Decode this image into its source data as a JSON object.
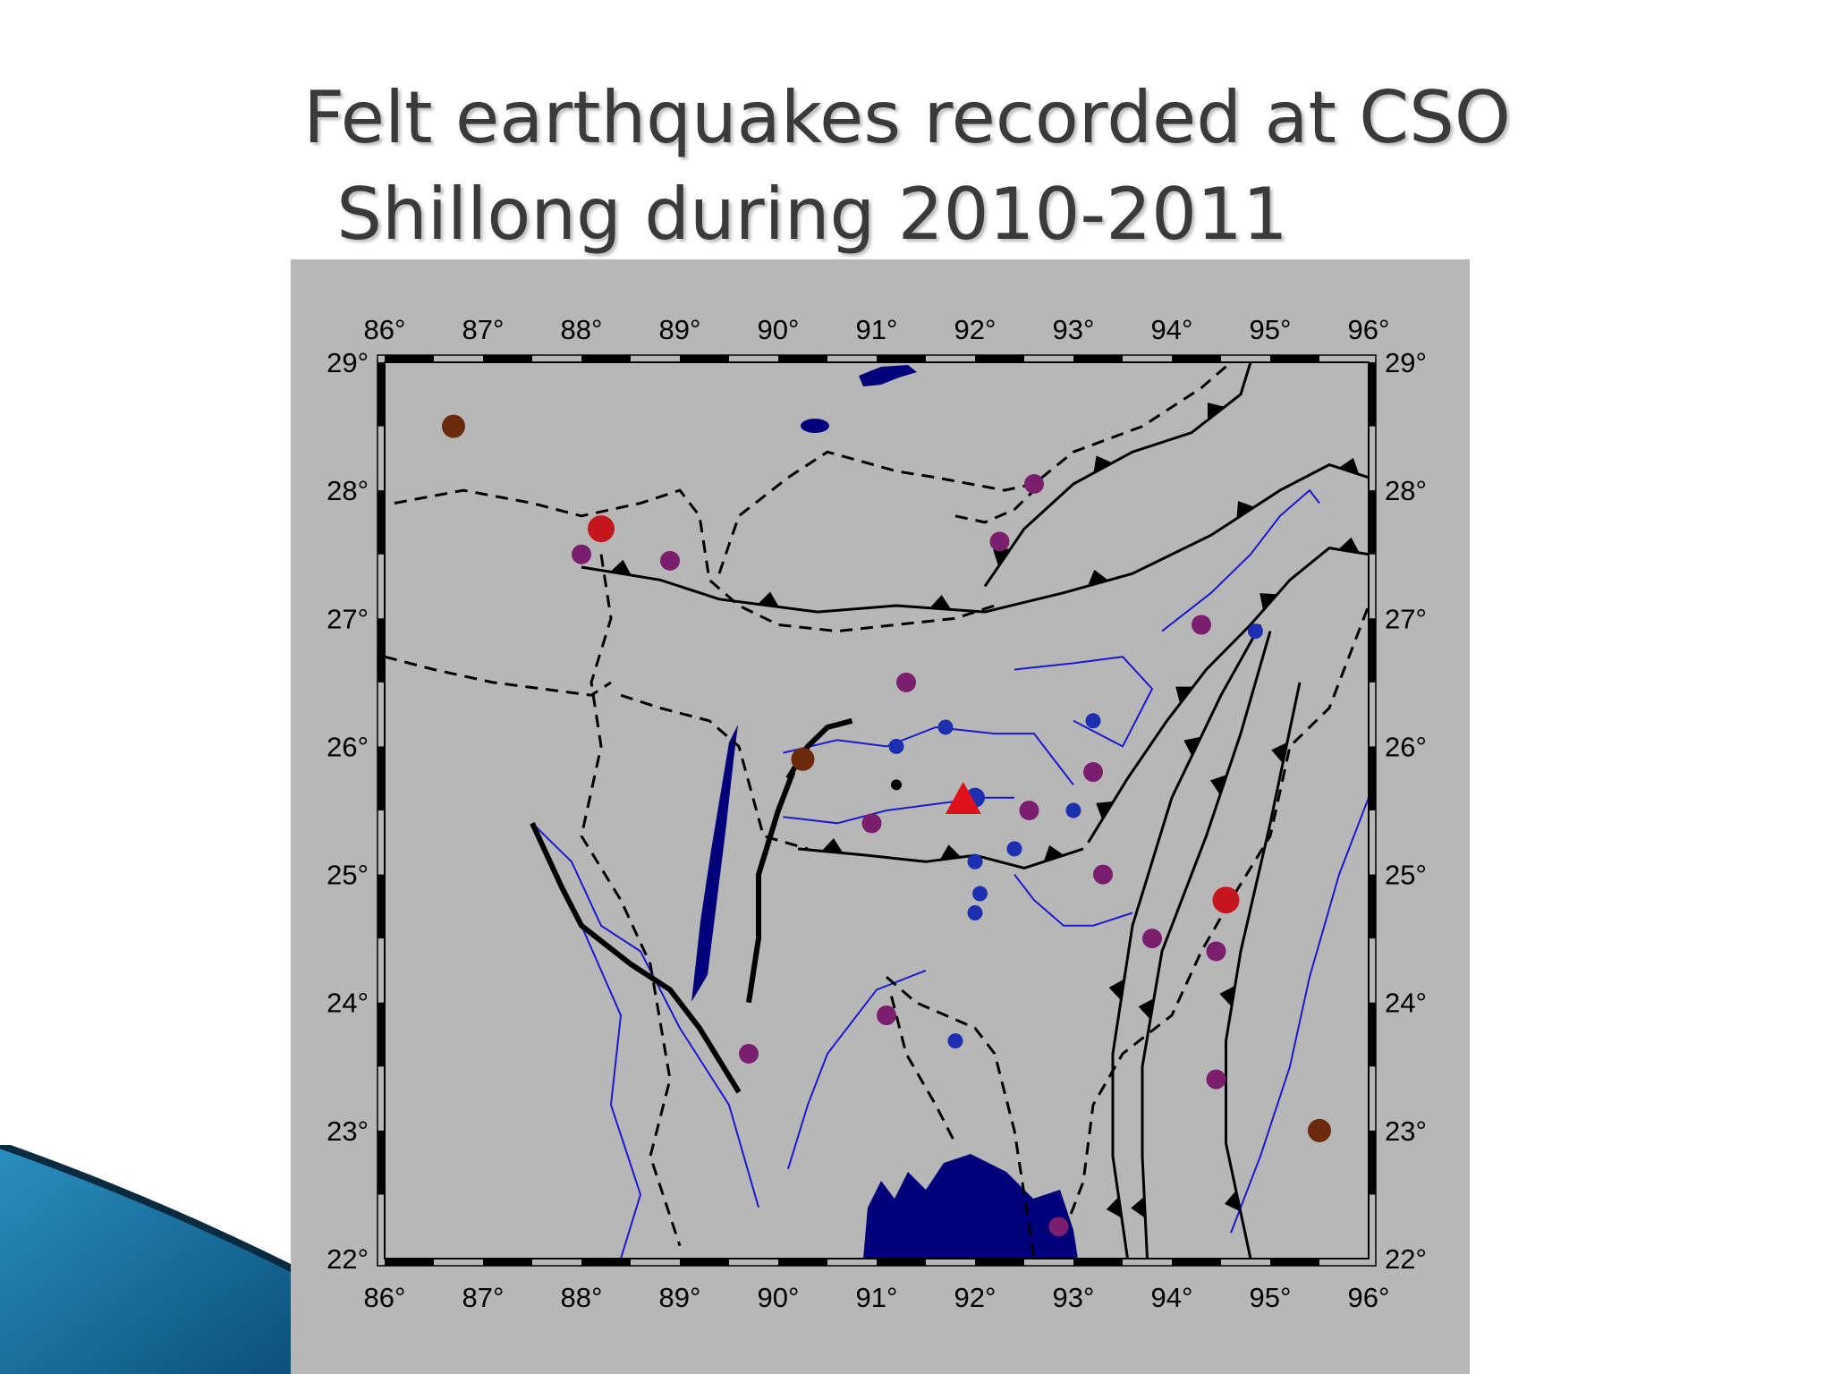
{
  "slide": {
    "title_line1": "Felt earthquakes recorded at CSO",
    "title_line2": "Shillong during 2010-2011"
  },
  "map": {
    "lon_range": [
      86,
      96
    ],
    "lat_range": [
      22,
      29
    ],
    "lon_ticks": [
      "86°",
      "87°",
      "88°",
      "89°",
      "90°",
      "91°",
      "92°",
      "93°",
      "94°",
      "95°",
      "96°"
    ],
    "lat_ticks": [
      "29°",
      "28°",
      "27°",
      "26°",
      "25°",
      "24°",
      "23°",
      "22°"
    ],
    "colors": {
      "background": "#b7b7b7",
      "water": "#00007a",
      "river": "#1a1ad0",
      "boundary": "#000000",
      "quake_red": "#c4161c",
      "quake_brown": "#6b2a0a",
      "quake_purple": "#7b1e6e",
      "quake_blue": "#1b2fb0",
      "station": "#e0101a"
    },
    "station": {
      "name": "CSO Shillong",
      "lon": 91.88,
      "lat": 25.57
    },
    "quakes": [
      {
        "lon": 86.7,
        "lat": 28.5,
        "class": "brown",
        "size": "large"
      },
      {
        "lon": 88.2,
        "lat": 27.7,
        "class": "red",
        "size": "xlarge"
      },
      {
        "lon": 88.0,
        "lat": 27.5,
        "class": "purple",
        "size": "medium"
      },
      {
        "lon": 88.9,
        "lat": 27.45,
        "class": "purple",
        "size": "medium"
      },
      {
        "lon": 92.6,
        "lat": 28.05,
        "class": "purple",
        "size": "medium"
      },
      {
        "lon": 92.25,
        "lat": 27.6,
        "class": "purple",
        "size": "medium"
      },
      {
        "lon": 91.3,
        "lat": 26.5,
        "class": "purple",
        "size": "medium"
      },
      {
        "lon": 94.3,
        "lat": 26.95,
        "class": "purple",
        "size": "medium"
      },
      {
        "lon": 94.85,
        "lat": 26.9,
        "class": "blue",
        "size": "small"
      },
      {
        "lon": 90.25,
        "lat": 25.9,
        "class": "brown",
        "size": "large"
      },
      {
        "lon": 91.2,
        "lat": 26.0,
        "class": "blue",
        "size": "small"
      },
      {
        "lon": 91.7,
        "lat": 26.15,
        "class": "blue",
        "size": "small"
      },
      {
        "lon": 91.2,
        "lat": 25.7,
        "class": "black",
        "size": "tiny"
      },
      {
        "lon": 92.0,
        "lat": 25.6,
        "class": "blue",
        "size": "medium"
      },
      {
        "lon": 93.2,
        "lat": 26.2,
        "class": "blue",
        "size": "small"
      },
      {
        "lon": 93.2,
        "lat": 25.8,
        "class": "purple",
        "size": "medium"
      },
      {
        "lon": 90.95,
        "lat": 25.4,
        "class": "purple",
        "size": "medium"
      },
      {
        "lon": 92.55,
        "lat": 25.5,
        "class": "purple",
        "size": "medium"
      },
      {
        "lon": 93.0,
        "lat": 25.5,
        "class": "blue",
        "size": "small"
      },
      {
        "lon": 92.4,
        "lat": 25.2,
        "class": "blue",
        "size": "small"
      },
      {
        "lon": 92.0,
        "lat": 25.1,
        "class": "blue",
        "size": "small"
      },
      {
        "lon": 92.05,
        "lat": 24.85,
        "class": "blue",
        "size": "small"
      },
      {
        "lon": 92.0,
        "lat": 24.7,
        "class": "blue",
        "size": "small"
      },
      {
        "lon": 93.3,
        "lat": 25.0,
        "class": "purple",
        "size": "medium"
      },
      {
        "lon": 94.55,
        "lat": 24.8,
        "class": "red",
        "size": "xlarge"
      },
      {
        "lon": 93.8,
        "lat": 24.5,
        "class": "purple",
        "size": "medium"
      },
      {
        "lon": 94.45,
        "lat": 24.4,
        "class": "purple",
        "size": "medium"
      },
      {
        "lon": 91.1,
        "lat": 23.9,
        "class": "purple",
        "size": "medium"
      },
      {
        "lon": 91.8,
        "lat": 23.7,
        "class": "blue",
        "size": "small"
      },
      {
        "lon": 89.7,
        "lat": 23.6,
        "class": "purple",
        "size": "medium"
      },
      {
        "lon": 94.45,
        "lat": 23.4,
        "class": "purple",
        "size": "medium"
      },
      {
        "lon": 95.5,
        "lat": 23.0,
        "class": "brown",
        "size": "large"
      },
      {
        "lon": 92.85,
        "lat": 22.25,
        "class": "purple",
        "size": "medium"
      }
    ],
    "thrusts": [
      [
        [
          88.0,
          27.4
        ],
        [
          88.8,
          27.3
        ],
        [
          89.4,
          27.15
        ],
        [
          90.4,
          27.05
        ],
        [
          91.2,
          27.1
        ],
        [
          92.1,
          27.05
        ],
        [
          92.9,
          27.2
        ],
        [
          93.6,
          27.35
        ],
        [
          94.4,
          27.65
        ],
        [
          95.1,
          28.0
        ],
        [
          95.6,
          28.2
        ],
        [
          96.0,
          28.1
        ]
      ],
      [
        [
          92.1,
          27.25
        ],
        [
          92.5,
          27.7
        ],
        [
          93.0,
          28.05
        ],
        [
          93.6,
          28.3
        ],
        [
          94.2,
          28.45
        ],
        [
          94.7,
          28.75
        ],
        [
          94.8,
          29.0
        ]
      ],
      [
        [
          93.15,
          25.25
        ],
        [
          93.55,
          25.75
        ],
        [
          93.95,
          26.2
        ],
        [
          94.35,
          26.6
        ],
        [
          94.8,
          26.95
        ],
        [
          95.2,
          27.3
        ],
        [
          95.6,
          27.55
        ],
        [
          96.0,
          27.5
        ]
      ],
      [
        [
          93.55,
          22.0
        ],
        [
          93.4,
          22.8
        ],
        [
          93.4,
          23.6
        ],
        [
          93.6,
          24.6
        ],
        [
          94.0,
          25.6
        ],
        [
          94.5,
          26.4
        ],
        [
          94.9,
          26.95
        ]
      ],
      [
        [
          93.75,
          22.0
        ],
        [
          93.7,
          22.8
        ],
        [
          93.7,
          23.5
        ],
        [
          93.9,
          24.4
        ],
        [
          94.35,
          25.3
        ],
        [
          94.7,
          26.1
        ],
        [
          95.0,
          26.9
        ]
      ],
      [
        [
          94.8,
          22.0
        ],
        [
          94.55,
          22.9
        ],
        [
          94.55,
          23.7
        ],
        [
          94.7,
          24.4
        ],
        [
          95.0,
          25.4
        ],
        [
          95.3,
          26.5
        ]
      ],
      [
        [
          90.2,
          25.2
        ],
        [
          90.9,
          25.15
        ],
        [
          91.5,
          25.1
        ],
        [
          92.0,
          25.15
        ],
        [
          92.5,
          25.05
        ],
        [
          93.1,
          25.2
        ]
      ]
    ],
    "boundaries": [
      [
        [
          86.0,
          26.7
        ],
        [
          86.5,
          26.6
        ],
        [
          87.1,
          26.5
        ],
        [
          87.6,
          26.45
        ],
        [
          88.1,
          26.4
        ],
        [
          88.3,
          26.5
        ]
      ],
      [
        [
          86.1,
          27.9
        ],
        [
          86.8,
          28.0
        ],
        [
          87.5,
          27.9
        ],
        [
          88.0,
          27.8
        ],
        [
          88.6,
          27.9
        ],
        [
          89.0,
          28.0
        ],
        [
          89.2,
          27.8
        ],
        [
          89.3,
          27.3
        ],
        [
          89.6,
          27.1
        ],
        [
          90.0,
          26.95
        ],
        [
          90.6,
          26.9
        ],
        [
          91.2,
          26.95
        ],
        [
          91.8,
          27.0
        ],
        [
          92.2,
          27.1
        ]
      ],
      [
        [
          89.4,
          27.35
        ],
        [
          89.6,
          27.8
        ],
        [
          90.1,
          28.1
        ],
        [
          90.5,
          28.3
        ],
        [
          91.2,
          28.15
        ],
        [
          91.6,
          28.1
        ],
        [
          92.3,
          28.0
        ],
        [
          92.6,
          28.05
        ],
        [
          93.0,
          28.3
        ],
        [
          93.7,
          28.5
        ],
        [
          94.3,
          28.8
        ],
        [
          94.6,
          29.0
        ]
      ],
      [
        [
          91.8,
          27.8
        ],
        [
          92.1,
          27.75
        ],
        [
          92.4,
          27.85
        ],
        [
          92.6,
          28.0
        ]
      ],
      [
        [
          88.2,
          27.5
        ],
        [
          88.3,
          27.0
        ],
        [
          88.1,
          26.5
        ],
        [
          88.2,
          26.0
        ],
        [
          88.0,
          25.3
        ],
        [
          88.4,
          24.8
        ],
        [
          88.7,
          24.3
        ],
        [
          88.9,
          23.4
        ],
        [
          88.7,
          22.8
        ],
        [
          89.0,
          22.1
        ]
      ],
      [
        [
          88.4,
          26.4
        ],
        [
          88.8,
          26.3
        ],
        [
          89.3,
          26.2
        ],
        [
          89.6,
          26.0
        ],
        [
          89.85,
          25.3
        ],
        [
          90.3,
          25.2
        ]
      ],
      [
        [
          91.1,
          24.2
        ],
        [
          91.4,
          24.0
        ],
        [
          91.7,
          23.9
        ],
        [
          92.0,
          23.8
        ],
        [
          92.2,
          23.6
        ],
        [
          92.4,
          23.0
        ],
        [
          92.5,
          22.5
        ],
        [
          92.6,
          22.0
        ]
      ],
      [
        [
          91.15,
          24.05
        ],
        [
          91.3,
          23.6
        ],
        [
          91.6,
          23.2
        ],
        [
          91.8,
          22.9
        ]
      ],
      [
        [
          92.9,
          22.2
        ],
        [
          93.1,
          22.6
        ],
        [
          93.2,
          23.2
        ],
        [
          93.5,
          23.6
        ],
        [
          94.0,
          23.9
        ],
        [
          94.3,
          24.4
        ],
        [
          94.6,
          24.8
        ],
        [
          95.0,
          25.3
        ],
        [
          95.2,
          26.0
        ],
        [
          95.6,
          26.3
        ],
        [
          96.0,
          27.1
        ]
      ]
    ],
    "rivers": [
      [
        [
          90.05,
          25.95
        ],
        [
          90.6,
          26.05
        ],
        [
          91.1,
          26.0
        ],
        [
          91.6,
          26.15
        ],
        [
          92.2,
          26.1
        ],
        [
          92.6,
          26.1
        ],
        [
          93.0,
          25.7
        ]
      ],
      [
        [
          90.05,
          25.45
        ],
        [
          90.6,
          25.4
        ],
        [
          91.1,
          25.5
        ],
        [
          91.6,
          25.55
        ],
        [
          92.1,
          25.6
        ],
        [
          92.4,
          25.6
        ]
      ],
      [
        [
          92.4,
          25.0
        ],
        [
          92.6,
          24.8
        ],
        [
          92.9,
          24.6
        ],
        [
          93.2,
          24.6
        ],
        [
          93.6,
          24.7
        ]
      ],
      [
        [
          92.4,
          26.6
        ],
        [
          93.0,
          26.65
        ],
        [
          93.5,
          26.7
        ],
        [
          93.8,
          26.45
        ],
        [
          93.5,
          26.0
        ],
        [
          93.0,
          26.2
        ]
      ],
      [
        [
          93.9,
          26.9
        ],
        [
          94.4,
          27.2
        ],
        [
          94.8,
          27.5
        ],
        [
          95.1,
          27.8
        ],
        [
          95.4,
          28.0
        ],
        [
          95.5,
          27.9
        ]
      ],
      [
        [
          87.5,
          25.4
        ],
        [
          87.9,
          25.1
        ],
        [
          88.2,
          24.6
        ],
        [
          88.6,
          24.4
        ],
        [
          89.0,
          23.8
        ],
        [
          89.5,
          23.2
        ],
        [
          89.8,
          22.4
        ]
      ],
      [
        [
          91.5,
          24.25
        ],
        [
          91.0,
          24.1
        ],
        [
          90.5,
          23.6
        ],
        [
          90.3,
          23.2
        ],
        [
          90.1,
          22.7
        ]
      ],
      [
        [
          94.6,
          22.2
        ],
        [
          94.9,
          22.8
        ],
        [
          95.2,
          23.5
        ],
        [
          95.4,
          24.2
        ],
        [
          95.7,
          25.0
        ],
        [
          96.0,
          25.6
        ]
      ],
      [
        [
          88.0,
          24.6
        ],
        [
          88.4,
          23.9
        ],
        [
          88.3,
          23.2
        ],
        [
          88.6,
          22.5
        ],
        [
          88.4,
          22.0
        ]
      ]
    ],
    "coast": [
      [
        [
          87.5,
          25.4
        ],
        [
          87.8,
          24.9
        ],
        [
          88.0,
          24.6
        ],
        [
          88.5,
          24.3
        ],
        [
          88.9,
          24.1
        ],
        [
          89.2,
          23.8
        ],
        [
          89.6,
          23.3
        ]
      ],
      [
        [
          90.1,
          25.75
        ],
        [
          90.3,
          26.0
        ],
        [
          90.5,
          26.15
        ],
        [
          90.75,
          26.2
        ]
      ],
      [
        [
          89.7,
          24.0
        ],
        [
          89.8,
          24.5
        ],
        [
          89.8,
          25.0
        ],
        [
          90.0,
          25.5
        ],
        [
          90.15,
          25.8
        ]
      ]
    ]
  }
}
